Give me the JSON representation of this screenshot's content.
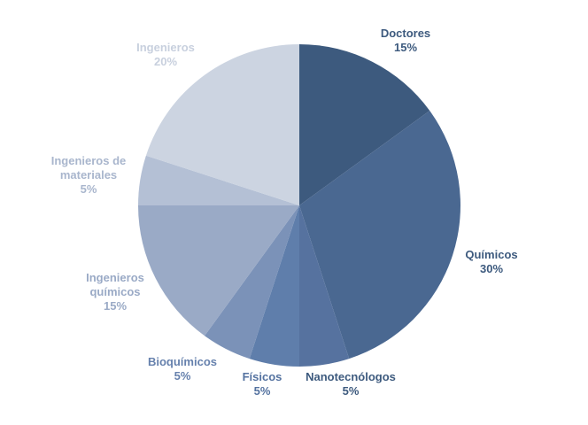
{
  "chart_data": {
    "type": "pie",
    "categories": [
      "Doctores",
      "Químicos",
      "Nanotecnólogos",
      "Físicos",
      "Bioquímicos",
      "Ingenieros químicos",
      "Ingenieros de materiales",
      "Ingenieros"
    ],
    "values": [
      15,
      30,
      5,
      5,
      5,
      15,
      5,
      20
    ],
    "value_labels": [
      "15%",
      "30%",
      "5%",
      "5%",
      "5%",
      "15%",
      "5%",
      "20%"
    ],
    "colors": [
      "#3d5a7e",
      "#4a6891",
      "#56729f",
      "#5f7eab",
      "#7b92b8",
      "#9aaac6",
      "#b4c0d5",
      "#ccd4e1"
    ]
  }
}
